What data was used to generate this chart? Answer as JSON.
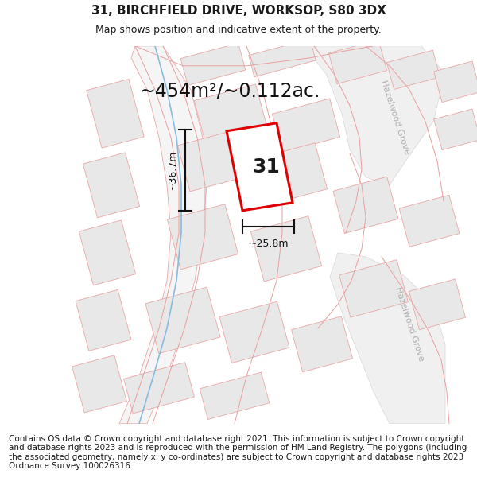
{
  "title": "31, BIRCHFIELD DRIVE, WORKSOP, S80 3DX",
  "subtitle": "Map shows position and indicative extent of the property.",
  "footer": "Contains OS data © Crown copyright and database right 2021. This information is subject to Crown copyright and database rights 2023 and is reproduced with the permission of HM Land Registry. The polygons (including the associated geometry, namely x, y co-ordinates) are subject to Crown copyright and database rights 2023 Ordnance Survey 100026316.",
  "area_label": "~454m²/~0.112ac.",
  "width_label": "~25.8m",
  "height_label": "~36.7m",
  "number_label": "31",
  "background_color": "#ffffff",
  "map_bg_color": "#f9f9f9",
  "road_color": "#d8d8d8",
  "road_fill": "#f0f0f0",
  "plot_edge_color": "#e8a8a8",
  "plot_fill_color": "#e8e8e8",
  "highlight_color": "#dd0000",
  "highlight_fill": "#ffffff",
  "road_label_color": "#b0b0b0",
  "dim_line_color": "#111111",
  "blue_line_color": "#88bbdd",
  "title_fontsize": 11,
  "subtitle_fontsize": 9,
  "footer_fontsize": 7.5,
  "area_fontsize": 17,
  "number_fontsize": 18,
  "dim_fontsize": 9,
  "road_label_fontsize": 8
}
